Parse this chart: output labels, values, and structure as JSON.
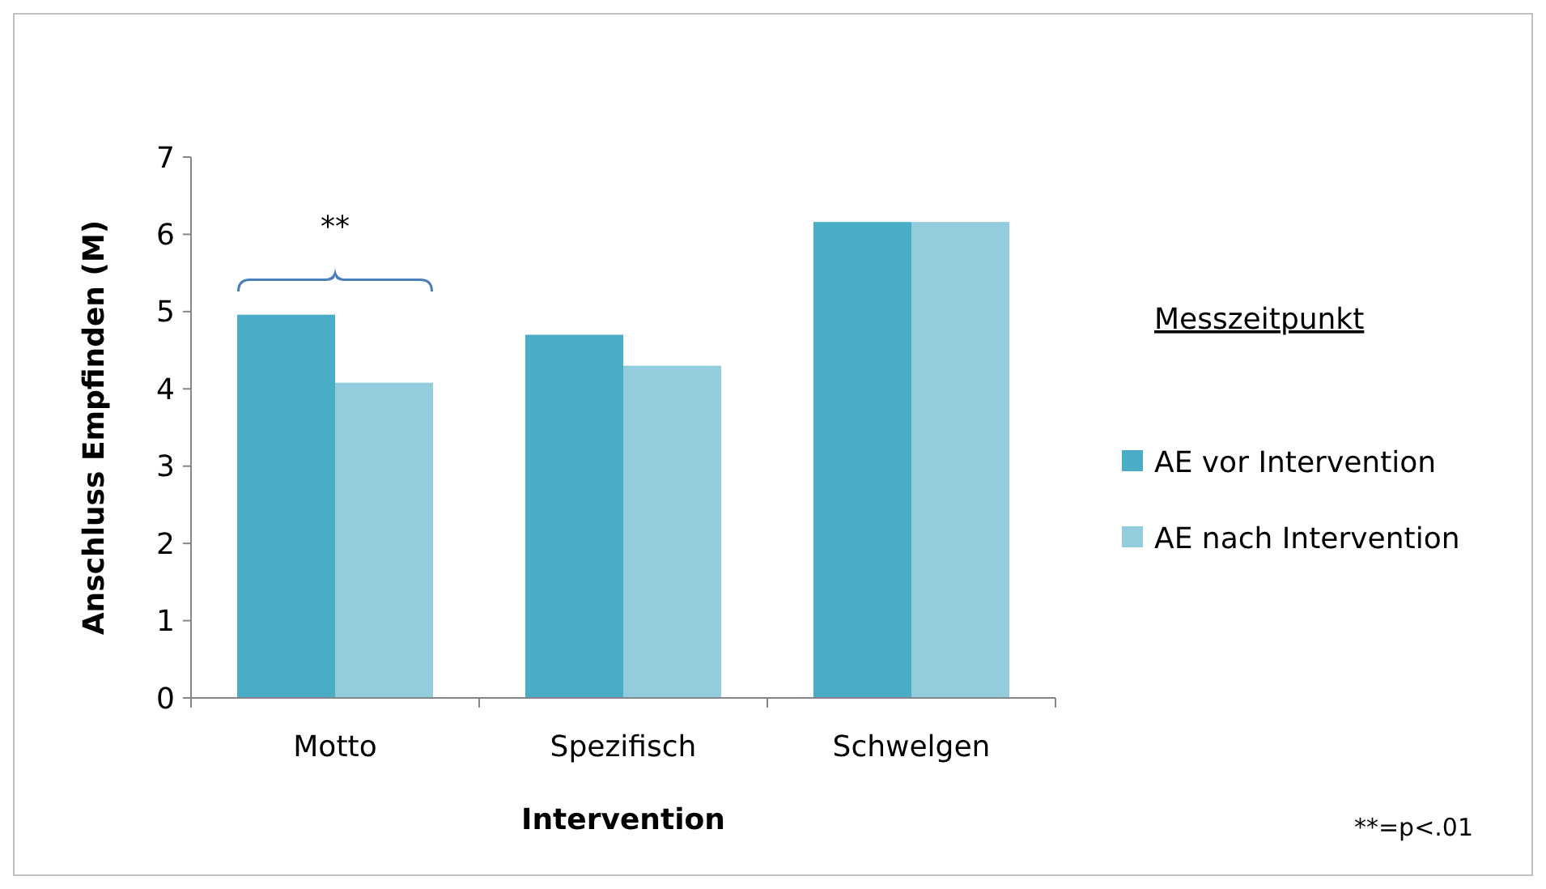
{
  "chart_data": {
    "type": "bar",
    "xlabel": "Intervention",
    "ylabel": "Anschluss Empfinden (M)",
    "legend_title": "Messzeitpunkt",
    "categories": [
      "Motto",
      "Spezifisch",
      "Schwelgen"
    ],
    "series": [
      {
        "name": "AE vor Intervention",
        "color": "#4bacc6",
        "values": [
          4.96,
          4.7,
          6.16
        ]
      },
      {
        "name": "AE nach Intervention",
        "color": "#93cddd",
        "values": [
          4.08,
          4.3,
          6.16
        ]
      }
    ],
    "ylim": [
      0,
      7
    ],
    "yticks": [
      0,
      1,
      2,
      3,
      4,
      5,
      6,
      7
    ],
    "grid": false,
    "legend": "right",
    "annotations": [
      "**",
      "**=p<.01"
    ]
  }
}
